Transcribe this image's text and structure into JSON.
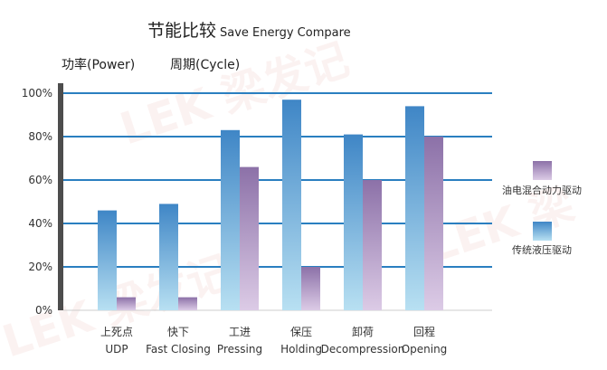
{
  "chart_data": {
    "type": "bar",
    "title_cn": "节能比较",
    "title_en": "Save Energy Compare",
    "ylabel": "功率(Power)",
    "xlabel": "周期(Cycle)",
    "ylim": [
      0,
      100
    ],
    "yticks": [
      "0%",
      "20%",
      "40%",
      "60%",
      "80%",
      "100%"
    ],
    "categories": [
      {
        "cn": "上死点",
        "en": "UDP"
      },
      {
        "cn": "快下",
        "en": "Fast Closing"
      },
      {
        "cn": "工进",
        "en": "Pressing"
      },
      {
        "cn": "保压",
        "en": "Holding"
      },
      {
        "cn": "卸荷",
        "en": "Decompression"
      },
      {
        "cn": "回程",
        "en": "Opening"
      }
    ],
    "series": [
      {
        "name": "传统液压驱动",
        "values": [
          46,
          49,
          83,
          97,
          81,
          94
        ]
      },
      {
        "name": "油电混合动力驱动",
        "values": [
          6,
          6,
          66,
          20,
          60,
          80
        ]
      }
    ],
    "legend_position": "right",
    "grid": true
  },
  "colors": {
    "traditional_top": "#3f86c6",
    "traditional_bottom": "#b8e0f2",
    "hybrid_top": "#8c71a8",
    "hybrid_bottom": "#dccbe6",
    "gridline": "#2a7fc0",
    "axis": "#4d4d4d"
  },
  "watermark": "LEK 梁发记"
}
